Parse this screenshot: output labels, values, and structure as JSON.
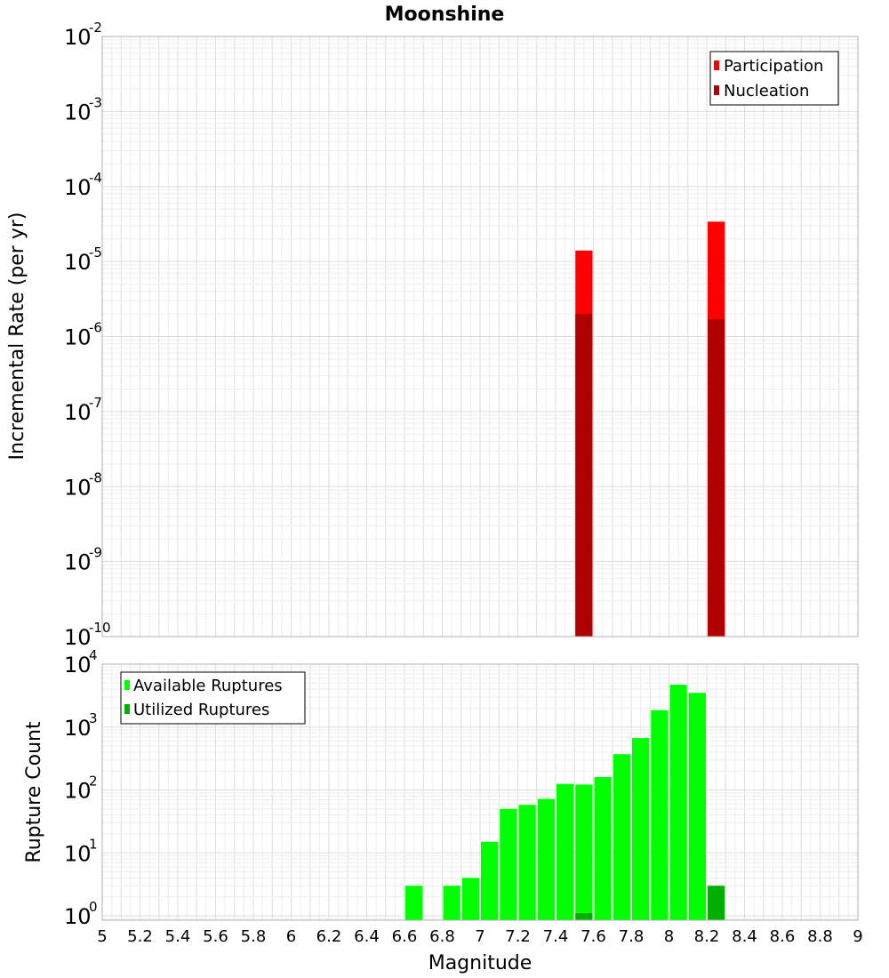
{
  "chart_data": [
    {
      "type": "bar",
      "title": "Moonshine",
      "ylabel": "Incremental Rate (per yr)",
      "y_scale": "log",
      "ylim": [
        1e-10,
        0.01
      ],
      "y_ticks": [
        {
          "base": "10",
          "exp": "-2",
          "value": 0.01
        },
        {
          "base": "10",
          "exp": "-3",
          "value": 0.001
        },
        {
          "base": "10",
          "exp": "-4",
          "value": 0.0001
        },
        {
          "base": "10",
          "exp": "-5",
          "value": 1e-05
        },
        {
          "base": "10",
          "exp": "-6",
          "value": 1e-06
        },
        {
          "base": "10",
          "exp": "-7",
          "value": 1e-07
        },
        {
          "base": "10",
          "exp": "-8",
          "value": 1e-08
        },
        {
          "base": "10",
          "exp": "-9",
          "value": 1e-09
        },
        {
          "base": "10",
          "exp": "-10",
          "value": 1e-10
        }
      ],
      "xlim": [
        5,
        9
      ],
      "bar_width": 0.1,
      "legend_position": "top-right",
      "series": [
        {
          "name": "Participation",
          "color": "#ff0000",
          "points": [
            [
              7.55,
              1.4e-05
            ],
            [
              8.25,
              3.4e-05
            ]
          ]
        },
        {
          "name": "Nucleation",
          "color": "#b00000",
          "points": [
            [
              7.55,
              2e-06
            ],
            [
              8.25,
              1.7e-06
            ]
          ]
        }
      ]
    },
    {
      "type": "bar",
      "xlabel": "Magnitude",
      "ylabel": "Rupture Count",
      "y_scale": "log",
      "ylim": [
        0.85,
        10000
      ],
      "y_ticks": [
        {
          "base": "10",
          "exp": "4",
          "value": 10000
        },
        {
          "base": "10",
          "exp": "3",
          "value": 1000
        },
        {
          "base": "10",
          "exp": "2",
          "value": 100
        },
        {
          "base": "10",
          "exp": "1",
          "value": 10
        },
        {
          "base": "10",
          "exp": "0",
          "value": 1
        }
      ],
      "xlim": [
        5,
        9
      ],
      "x_tick_labels": [
        "5",
        "5.2",
        "5.4",
        "5.6",
        "5.8",
        "6",
        "6.2",
        "6.4",
        "6.6",
        "6.8",
        "7",
        "7.2",
        "7.4",
        "7.6",
        "7.8",
        "8",
        "8.2",
        "8.4",
        "8.6",
        "8.8",
        "9"
      ],
      "bar_width": 0.1,
      "legend_position": "top-left",
      "series": [
        {
          "name": "Available Ruptures",
          "color": "#00ff00",
          "points": [
            [
              6.65,
              3
            ],
            [
              6.85,
              3
            ],
            [
              6.95,
              4
            ],
            [
              7.05,
              15
            ],
            [
              7.15,
              50
            ],
            [
              7.25,
              58
            ],
            [
              7.35,
              72
            ],
            [
              7.45,
              125
            ],
            [
              7.55,
              122
            ],
            [
              7.65,
              160
            ],
            [
              7.75,
              370
            ],
            [
              7.85,
              670
            ],
            [
              7.95,
              1850
            ],
            [
              8.05,
              4700
            ],
            [
              8.15,
              3500
            ]
          ]
        },
        {
          "name": "Utilized Ruptures",
          "color": "#00b000",
          "points": [
            [
              7.55,
              1.1
            ],
            [
              8.25,
              3
            ]
          ]
        }
      ]
    }
  ]
}
